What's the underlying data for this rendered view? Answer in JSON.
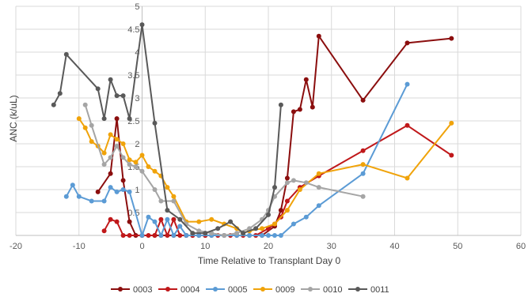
{
  "chart_data": {
    "type": "line",
    "title": "",
    "xlabel": "Time Relative to Transplant Day 0",
    "ylabel": "ANC (k/uL)",
    "xlim": [
      -20,
      60
    ],
    "ylim": [
      0,
      5
    ],
    "x_ticks": [
      -20,
      -10,
      0,
      10,
      20,
      30,
      40,
      50,
      60
    ],
    "x_tick_labels": [
      "-20",
      "-10",
      "0",
      "10",
      "20",
      "30",
      "40",
      "50",
      "60"
    ],
    "y_ticks": [
      0.5,
      1,
      1.5,
      2,
      2.5,
      3,
      3.5,
      4,
      4.5,
      5
    ],
    "y_tick_labels": [
      "0.5",
      "1",
      "1.5",
      "2",
      "2.5",
      "3",
      "3.5",
      "4",
      "4.5",
      "5"
    ],
    "grid": true,
    "legend_position": "bottom",
    "series": [
      {
        "name": "0003",
        "color": "#8B0E0E",
        "points": [
          [
            -7,
            0.95
          ],
          [
            -5,
            1.35
          ],
          [
            -4,
            2.55
          ],
          [
            -3,
            1.2
          ],
          [
            -2,
            0.3
          ],
          [
            -1,
            0.0
          ],
          [
            0,
            0.0
          ],
          [
            2,
            0.0
          ],
          [
            3,
            0.0
          ],
          [
            5,
            0.0
          ],
          [
            7,
            0.0
          ],
          [
            8,
            0.0
          ],
          [
            9,
            0.0
          ],
          [
            10,
            0.0
          ],
          [
            11,
            0.0
          ],
          [
            13,
            0.0
          ],
          [
            15,
            0.0
          ],
          [
            17,
            0.0
          ],
          [
            19,
            0.0
          ],
          [
            21,
            0.2
          ],
          [
            22,
            0.55
          ],
          [
            23,
            1.25
          ],
          [
            24,
            2.7
          ],
          [
            25,
            2.75
          ],
          [
            26,
            3.4
          ],
          [
            27,
            2.8
          ],
          [
            28,
            4.35
          ],
          [
            35,
            2.95
          ],
          [
            42,
            4.2
          ],
          [
            49,
            4.3
          ]
        ]
      },
      {
        "name": "0004",
        "color": "#C0181A",
        "points": [
          [
            -6,
            0.1
          ],
          [
            -5,
            0.35
          ],
          [
            -4,
            0.3
          ],
          [
            -3,
            0.0
          ],
          [
            -2,
            0.0
          ],
          [
            0,
            0.0
          ],
          [
            1,
            0.0
          ],
          [
            2,
            0.0
          ],
          [
            3,
            0.35
          ],
          [
            4,
            0.0
          ],
          [
            5,
            0.35
          ],
          [
            6,
            0.0
          ],
          [
            7,
            0.0
          ],
          [
            8,
            0.0
          ],
          [
            10,
            0.0
          ],
          [
            12,
            0.0
          ],
          [
            14,
            0.0
          ],
          [
            16,
            0.0
          ],
          [
            18,
            0.0
          ],
          [
            20,
            0.15
          ],
          [
            21,
            0.25
          ],
          [
            22,
            0.4
          ],
          [
            23,
            0.75
          ],
          [
            25,
            1.05
          ],
          [
            28,
            1.3
          ],
          [
            35,
            1.85
          ],
          [
            42,
            2.4
          ],
          [
            49,
            1.75
          ]
        ]
      },
      {
        "name": "0005",
        "color": "#5B9BD5",
        "points": [
          [
            -12,
            0.85
          ],
          [
            -11,
            1.1
          ],
          [
            -10,
            0.85
          ],
          [
            -8,
            0.75
          ],
          [
            -6,
            0.75
          ],
          [
            -5,
            1.05
          ],
          [
            -4,
            0.95
          ],
          [
            -3,
            1.0
          ],
          [
            -2,
            0.95
          ],
          [
            0,
            0.0
          ],
          [
            1,
            0.4
          ],
          [
            2,
            0.3
          ],
          [
            3,
            0.0
          ],
          [
            4,
            0.35
          ],
          [
            5,
            0.0
          ],
          [
            6,
            0.2
          ],
          [
            7,
            0.0
          ],
          [
            9,
            0.0
          ],
          [
            11,
            0.0
          ],
          [
            13,
            0.0
          ],
          [
            15,
            0.0
          ],
          [
            17,
            0.0
          ],
          [
            19,
            0.0
          ],
          [
            20,
            0.0
          ],
          [
            21,
            0.0
          ],
          [
            22,
            0.0
          ],
          [
            24,
            0.25
          ],
          [
            26,
            0.4
          ],
          [
            28,
            0.65
          ],
          [
            35,
            1.35
          ],
          [
            42,
            3.3
          ]
        ]
      },
      {
        "name": "0009",
        "color": "#F0A30A",
        "points": [
          [
            -10,
            2.55
          ],
          [
            -9,
            2.35
          ],
          [
            -8,
            2.05
          ],
          [
            -7,
            1.95
          ],
          [
            -6,
            1.8
          ],
          [
            -5,
            2.2
          ],
          [
            -4,
            2.1
          ],
          [
            -3,
            2.0
          ],
          [
            -2,
            1.65
          ],
          [
            -1,
            1.6
          ],
          [
            0,
            1.75
          ],
          [
            1,
            1.5
          ],
          [
            2,
            1.4
          ],
          [
            3,
            1.3
          ],
          [
            4,
            1.05
          ],
          [
            5,
            0.85
          ],
          [
            7,
            0.3
          ],
          [
            9,
            0.3
          ],
          [
            11,
            0.35
          ],
          [
            13,
            0.25
          ],
          [
            15,
            0.15
          ],
          [
            16,
            0.05
          ],
          [
            17,
            0.1
          ],
          [
            19,
            0.15
          ],
          [
            21,
            0.25
          ],
          [
            23,
            0.55
          ],
          [
            25,
            1.0
          ],
          [
            28,
            1.35
          ],
          [
            35,
            1.55
          ],
          [
            42,
            1.25
          ],
          [
            49,
            2.45
          ]
        ]
      },
      {
        "name": "0010",
        "color": "#A5A5A5",
        "points": [
          [
            -9,
            2.85
          ],
          [
            -8,
            2.4
          ],
          [
            -6,
            1.55
          ],
          [
            -5,
            1.7
          ],
          [
            -4,
            1.95
          ],
          [
            -3,
            1.7
          ],
          [
            -2,
            1.55
          ],
          [
            -1,
            1.5
          ],
          [
            0,
            1.4
          ],
          [
            2,
            1.0
          ],
          [
            3,
            0.75
          ],
          [
            5,
            0.75
          ],
          [
            7,
            0.25
          ],
          [
            9,
            0.1
          ],
          [
            11,
            0.05
          ],
          [
            13,
            0.0
          ],
          [
            15,
            0.05
          ],
          [
            17,
            0.15
          ],
          [
            19,
            0.35
          ],
          [
            20,
            0.55
          ],
          [
            21,
            0.85
          ],
          [
            23,
            1.15
          ],
          [
            24,
            1.2
          ],
          [
            26,
            1.15
          ],
          [
            28,
            1.05
          ],
          [
            35,
            0.85
          ]
        ]
      },
      {
        "name": "0011",
        "color": "#595959",
        "points": [
          [
            -14,
            2.85
          ],
          [
            -13,
            3.1
          ],
          [
            -12,
            3.95
          ],
          [
            -7,
            3.2
          ],
          [
            -6,
            2.55
          ],
          [
            -5,
            3.4
          ],
          [
            -4,
            3.05
          ],
          [
            -3,
            3.05
          ],
          [
            -2,
            2.55
          ],
          [
            0,
            4.6
          ],
          [
            2,
            2.45
          ],
          [
            4,
            0.55
          ],
          [
            6,
            0.35
          ],
          [
            8,
            0.05
          ],
          [
            10,
            0.05
          ],
          [
            12,
            0.15
          ],
          [
            14,
            0.3
          ],
          [
            16,
            0.05
          ],
          [
            18,
            0.15
          ],
          [
            20,
            0.45
          ],
          [
            21,
            1.05
          ],
          [
            22,
            2.85
          ]
        ]
      }
    ]
  }
}
